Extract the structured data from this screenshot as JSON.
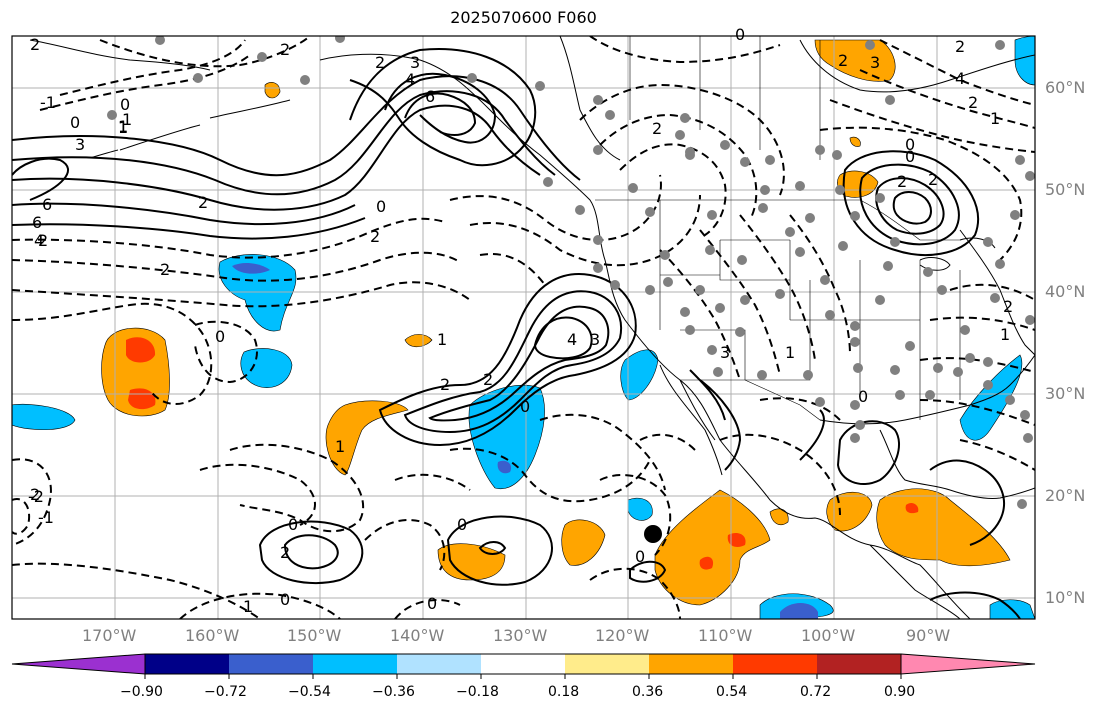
{
  "title": "2025070600 F060",
  "longitude_labels": [
    "170°W",
    "160°W",
    "150°W",
    "140°W",
    "130°W",
    "120°W",
    "110°W",
    "100°W",
    "90°W"
  ],
  "latitude_labels": [
    "60°N",
    "50°N",
    "40°N",
    "30°N",
    "20°N",
    "10°N"
  ],
  "contour_labels": [
    "2",
    "2",
    "0",
    "1",
    "-1",
    "0",
    "1",
    "3",
    "6",
    "2",
    "6",
    "4",
    "2",
    "2",
    "2",
    "3",
    "4",
    "6",
    "0",
    "2",
    "2",
    "0",
    "1",
    "2",
    "3",
    "4",
    "3",
    "1",
    "2",
    "0",
    "1",
    "2",
    "0",
    "2",
    "0",
    "-2",
    "-1",
    "0",
    "0",
    "1",
    "0",
    "0",
    "0",
    "2",
    "2",
    "4",
    "2",
    "1",
    "0",
    "2",
    "2",
    "0",
    "2",
    "1",
    "3",
    "1"
  ],
  "colorbar": {
    "colors": [
      "#9b30d0",
      "#000088",
      "#3a5fcd",
      "#00bfff",
      "#b0e2ff",
      "#ffffff",
      "#ffec8b",
      "#ffa500",
      "#ff3a00",
      "#b22222",
      "#ff88b0"
    ],
    "tick_labels": [
      "−0.90",
      "−0.72",
      "−0.54",
      "−0.36",
      "−0.18",
      "0.18",
      "0.36",
      "0.54",
      "0.72",
      "0.90"
    ]
  },
  "map_colors": {
    "orange": "#ffa500",
    "red": "#ff3a00",
    "cyan": "#00bfff",
    "blue": "#3a5fcd",
    "navy": "#000088",
    "station": "#808080"
  }
}
